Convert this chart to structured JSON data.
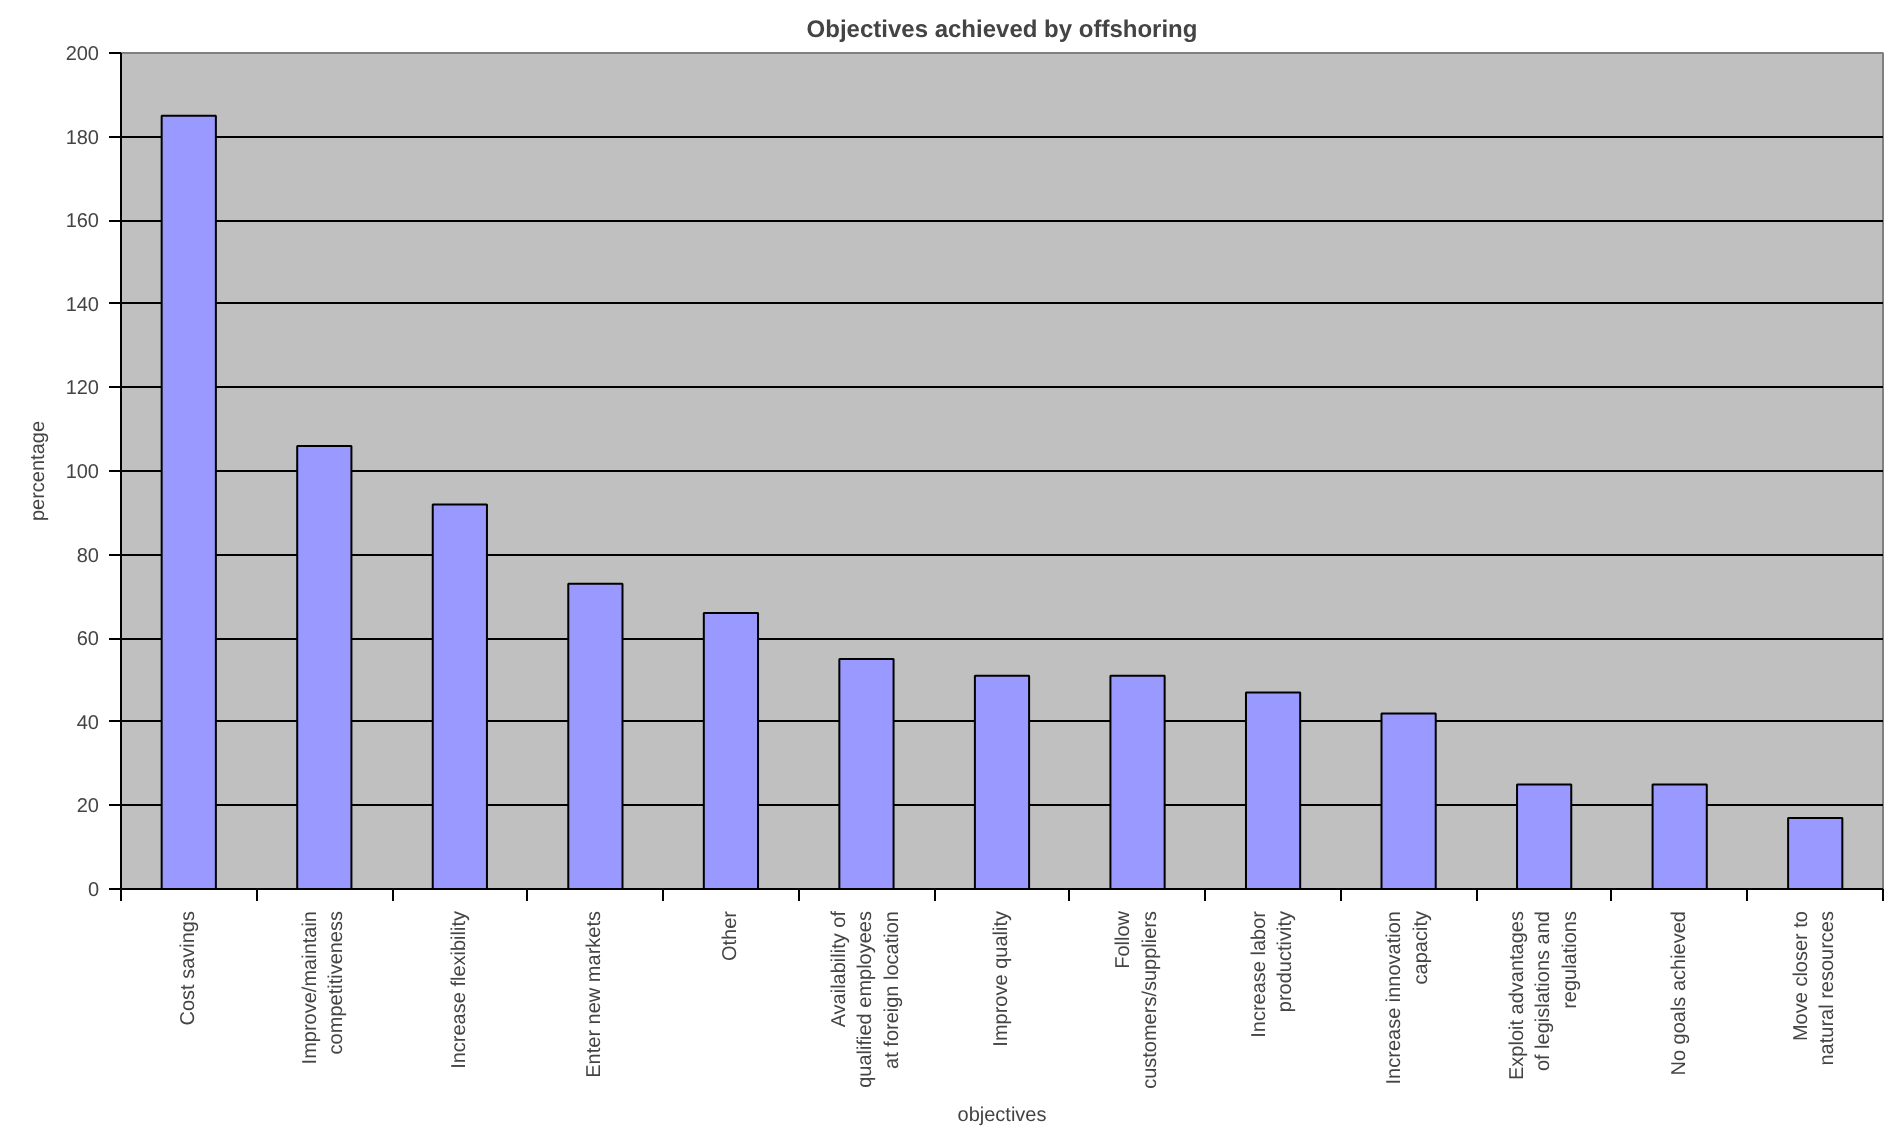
{
  "chart_data": {
    "type": "bar",
    "title": "Objectives achieved by offshoring",
    "xlabel": "objectives",
    "ylabel": "percentage",
    "categories": [
      "Cost savings",
      "Improve/maintain\ncompetitiveness",
      "Increase flexibility",
      "Enter new markets",
      "Other",
      "Availability of\nqualified employees\nat foreign location",
      "Improve quality",
      "Follow\ncustomers/suppliers",
      "Increase labor\nproductivity",
      "Increase innovation\ncapacity",
      "Exploit advantages\nof legislations and\nregulations",
      "No goals achieved",
      "Move closer to\nnatural resources"
    ],
    "values": [
      185,
      106,
      92,
      73,
      66,
      55,
      51,
      51,
      47,
      42,
      25,
      25,
      17
    ],
    "color": "#9999ff",
    "ylim": [
      0,
      200
    ],
    "yticks": [
      0,
      20,
      40,
      60,
      80,
      100,
      120,
      140,
      160,
      180,
      200
    ],
    "grid": "y"
  }
}
